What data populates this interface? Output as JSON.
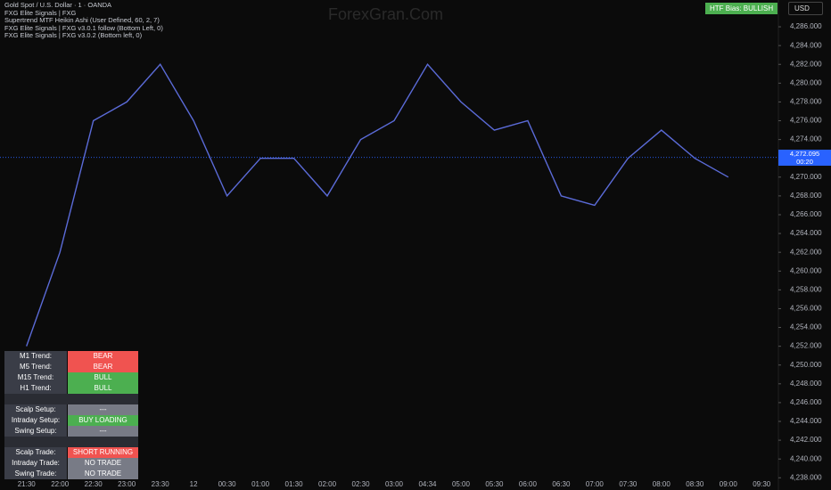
{
  "header": {
    "lines": [
      "Gold Spot / U.S. Dollar · 1 · OANDA",
      "FXG Elite Signals | FXG",
      "Supertrend MTF Heikin Ashi (User Defined, 60, 2, 7)",
      "FXG Elite Signals | FXG v3.0.1 follow (Bottom Left, 0)",
      "FXG Elite Signals | FXG v3.0.2 (Bottom left, 0)"
    ]
  },
  "watermark": "ForexGran.Com",
  "badge": "HTF Bias: BULLISH",
  "currency": "USD",
  "countdown": "00:20",
  "table": {
    "groups": [
      [
        {
          "label": "M1 Trend:",
          "value": "BEAR",
          "color": "#f05350"
        },
        {
          "label": "M5 Trend:",
          "value": "BEAR",
          "color": "#f05350"
        },
        {
          "label": "M15 Trend:",
          "value": "BULL",
          "color": "#4caf50"
        },
        {
          "label": "H1 Trend:",
          "value": "BULL",
          "color": "#4caf50"
        }
      ],
      [
        {
          "label": "Scalp Setup:",
          "value": "---",
          "color": "#787b86"
        },
        {
          "label": "Intraday Setup:",
          "value": "BUY LOADING",
          "color": "#4caf50"
        },
        {
          "label": "Swing Setup:",
          "value": "---",
          "color": "#787b86"
        }
      ],
      [
        {
          "label": "Scalp Trade:",
          "value": "SHORT RUNNING",
          "color": "#f05350"
        },
        {
          "label": "Intraday Trade:",
          "value": "NO TRADE",
          "color": "#787b86"
        },
        {
          "label": "Swing Trade:",
          "value": "NO TRADE",
          "color": "#787b86"
        }
      ]
    ]
  },
  "chart_data": {
    "type": "line",
    "color": "#5b6bd8",
    "categories": [
      "21:30",
      "22:00",
      "22:30",
      "23:00",
      "23:30",
      "12",
      "00:30",
      "01:00",
      "01:30",
      "02:00",
      "02:30",
      "03:00",
      "04:34",
      "05:00",
      "05:30",
      "06:00",
      "06:30",
      "07:00",
      "07:30",
      "08:00",
      "08:30",
      "09:00",
      "09:30"
    ],
    "values": [
      4252,
      4262,
      4276,
      4278,
      4282,
      4276,
      4268,
      4272,
      4272,
      4268,
      4274,
      4276,
      4282,
      4278,
      4275,
      4276,
      4268,
      4267,
      4272,
      4275,
      4272,
      4270,
      null
    ],
    "last_price": {
      "value": 4272.095,
      "label": "4,272.095"
    },
    "ylim": [
      4236.7,
      4288.85
    ],
    "yticks": [
      {
        "value": 4238,
        "label": "4,238.000"
      },
      {
        "value": 4240,
        "label": "4,240.000"
      },
      {
        "value": 4242,
        "label": "4,242.000"
      },
      {
        "value": 4244,
        "label": "4,244.000"
      },
      {
        "value": 4246,
        "label": "4,246.000"
      },
      {
        "value": 4248,
        "label": "4,248.000"
      },
      {
        "value": 4250,
        "label": "4,250.000"
      },
      {
        "value": 4252,
        "label": "4,252.000"
      },
      {
        "value": 4254,
        "label": "4,254.000"
      },
      {
        "value": 4256,
        "label": "4,256.000"
      },
      {
        "value": 4258,
        "label": "4,258.000"
      },
      {
        "value": 4260,
        "label": "4,260.000"
      },
      {
        "value": 4262,
        "label": "4,262.000"
      },
      {
        "value": 4264,
        "label": "4,264.000"
      },
      {
        "value": 4266,
        "label": "4,266.000"
      },
      {
        "value": 4268,
        "label": "4,268.000"
      },
      {
        "value": 4270,
        "label": "4,270.000"
      },
      {
        "value": 4272,
        "label": "4,272.000"
      },
      {
        "value": 4274,
        "label": "4,274.000"
      },
      {
        "value": 4276,
        "label": "4,276.000"
      },
      {
        "value": 4278,
        "label": "4,278.000"
      },
      {
        "value": 4280,
        "label": "4,280.000"
      },
      {
        "value": 4282,
        "label": "4,282.000"
      },
      {
        "value": 4284,
        "label": "4,284.000"
      },
      {
        "value": 4286,
        "label": "4,286.000"
      }
    ]
  }
}
